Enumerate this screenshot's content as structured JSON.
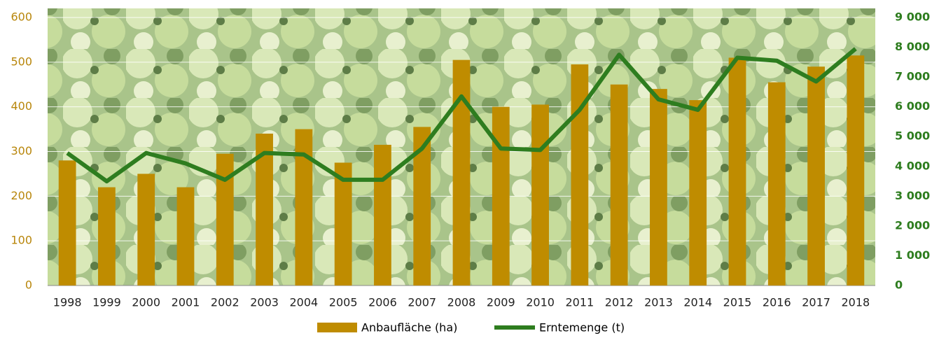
{
  "chart_data": {
    "type": "bar",
    "categories": [
      "1998",
      "1999",
      "2000",
      "2001",
      "2002",
      "2003",
      "2004",
      "2005",
      "2006",
      "2007",
      "2008",
      "2009",
      "2010",
      "2011",
      "2012",
      "2013",
      "2014",
      "2015",
      "2016",
      "2017",
      "2018"
    ],
    "series": [
      {
        "name": "Anbaufläche (ha)",
        "type": "bar",
        "color": "#bf8c00",
        "values": [
          280,
          220,
          250,
          220,
          295,
          340,
          350,
          275,
          315,
          355,
          505,
          400,
          405,
          495,
          450,
          440,
          415,
          510,
          455,
          490,
          515
        ]
      },
      {
        "name": "Erntemenge (t)",
        "type": "line",
        "axis": "y2",
        "color": "#2e7d1f",
        "values": [
          4450,
          3500,
          4450,
          4100,
          3550,
          4450,
          4400,
          3550,
          3550,
          4600,
          6350,
          4600,
          4550,
          5900,
          7750,
          6250,
          5900,
          7650,
          7550,
          6850,
          7950
        ]
      }
    ],
    "ylim": [
      0,
      600
    ],
    "yticks": [
      0,
      100,
      200,
      300,
      400,
      500,
      600
    ],
    "ytick_color": "#b8860b",
    "y2lim": [
      0,
      9000
    ],
    "y2ticks": [
      0,
      {
        "value": 1000,
        "label": "1 000"
      },
      {
        "value": 2000,
        "label": "2 000"
      },
      {
        "value": 3000,
        "label": "3 000"
      },
      {
        "value": 4000,
        "label": "4 000"
      },
      {
        "value": 5000,
        "label": "5 000"
      },
      {
        "value": 6000,
        "label": "6 000"
      },
      {
        "value": 7000,
        "label": "7 000"
      },
      {
        "value": 8000,
        "label": "8 000"
      },
      {
        "value": 9000,
        "label": "9 000"
      }
    ],
    "y2tick_color": "#2e7d1f",
    "grid": true
  }
}
